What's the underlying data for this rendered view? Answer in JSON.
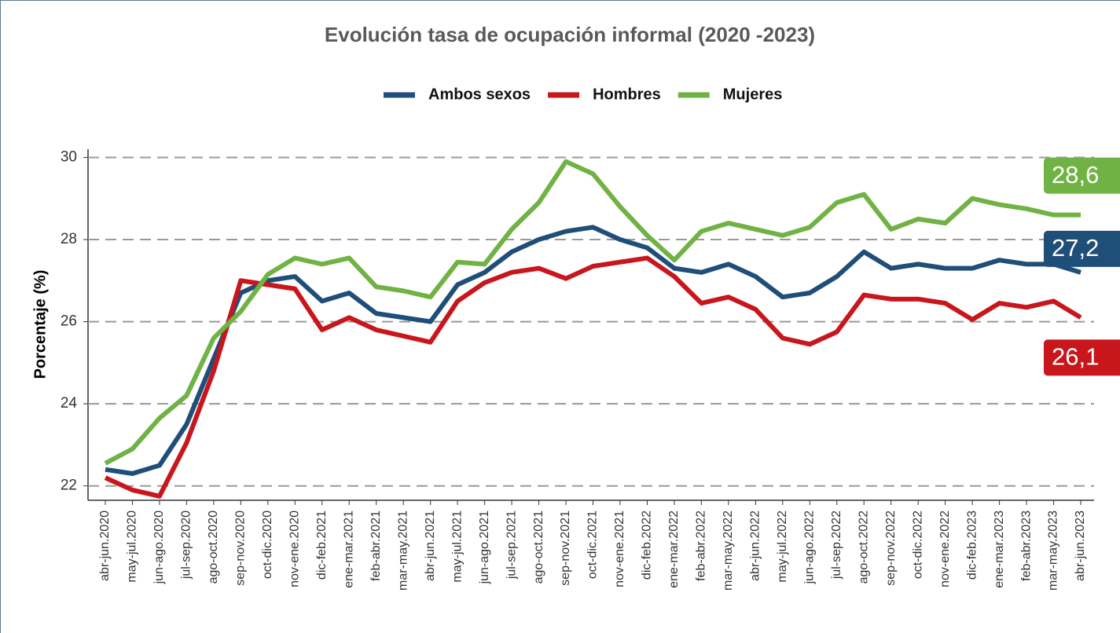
{
  "chart_data": {
    "type": "line",
    "title": "Evolución tasa de ocupación informal (2020 -2023)",
    "y_label": "Porcentaje (%)",
    "categories": [
      "abr-jun.2020",
      "may-jul.2020",
      "jun-ago.2020",
      "jul-sep.2020",
      "ago-oct.2020",
      "sep-nov.2020",
      "oct-dic.2020",
      "nov-ene.2020",
      "dic-feb.2021",
      "ene-mar.2021",
      "feb-abr.2021",
      "mar-may.2021",
      "abr-jun.2021",
      "may-jul.2021",
      "jun-ago.2021",
      "jul-sep.2021",
      "ago-oct.2021",
      "sep-nov.2021",
      "oct-dic.2021",
      "nov-ene.2021",
      "dic-feb.2022",
      "ene-mar.2022",
      "feb-abr.2022",
      "mar-may.2022",
      "abr-jun.2022",
      "may-jul.2022",
      "jun-ago.2022",
      "jul-sep.2022",
      "ago-oct.2022",
      "sep-nov.2022",
      "oct-dic.2022",
      "nov-ene.2022",
      "dic-feb.2023",
      "ene-mar.2023",
      "feb-abr.2023",
      "mar-may.2023",
      "abr-jun.2023"
    ],
    "series": [
      {
        "name": "Ambos sexos",
        "color": "#1f4e79",
        "end_label": "27,2",
        "values": [
          22.4,
          22.3,
          22.5,
          23.5,
          25.1,
          26.7,
          27.0,
          27.1,
          26.5,
          26.7,
          26.2,
          26.1,
          26.0,
          26.9,
          27.2,
          27.7,
          28.0,
          28.2,
          28.3,
          28.0,
          27.8,
          27.3,
          27.2,
          27.4,
          27.1,
          26.6,
          26.7,
          27.1,
          27.7,
          27.3,
          27.4,
          27.3,
          27.3,
          27.5,
          27.4,
          27.4,
          27.2
        ]
      },
      {
        "name": "Hombres",
        "color": "#c8161d",
        "end_label": "26,1",
        "values": [
          22.2,
          21.9,
          21.75,
          23.05,
          24.8,
          27.0,
          26.9,
          26.8,
          25.8,
          26.1,
          25.8,
          25.65,
          25.5,
          26.5,
          26.95,
          27.2,
          27.3,
          27.05,
          27.35,
          27.45,
          27.55,
          27.1,
          26.45,
          26.6,
          26.3,
          25.6,
          25.45,
          25.75,
          26.65,
          26.55,
          26.55,
          26.45,
          26.05,
          26.45,
          26.35,
          26.5,
          26.1
        ]
      },
      {
        "name": "Mujeres",
        "color": "#70b244",
        "end_label": "28,6",
        "values": [
          22.55,
          22.9,
          23.65,
          24.2,
          25.6,
          26.25,
          27.15,
          27.55,
          27.4,
          27.55,
          26.85,
          26.75,
          26.6,
          27.45,
          27.4,
          28.25,
          28.9,
          29.9,
          29.6,
          28.8,
          28.1,
          27.5,
          28.2,
          28.4,
          28.25,
          28.1,
          28.3,
          28.9,
          29.1,
          28.25,
          28.5,
          28.4,
          29.0,
          28.85,
          28.75,
          28.6,
          28.6
        ]
      }
    ],
    "ylim": [
      21.65,
      30.2
    ],
    "yticks": [
      22,
      24,
      26,
      28,
      30
    ],
    "grid": true,
    "legend": "top"
  }
}
